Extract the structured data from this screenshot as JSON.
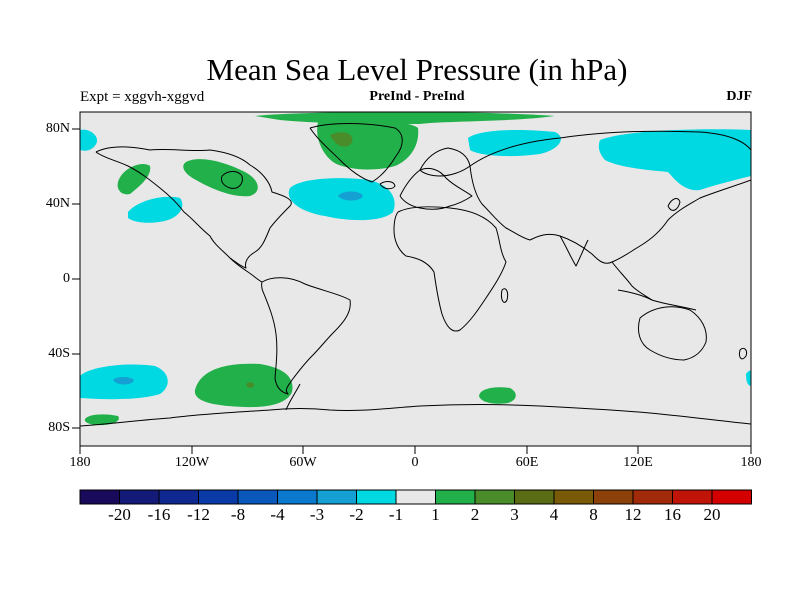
{
  "title": "Mean Sea Level Pressure (in hPa)",
  "experiment_label": "Expt = xggvh-xggvd",
  "comparison_label": "PreInd - PreInd",
  "season": "DJF",
  "lat_labels": [
    "80N",
    "40N",
    "0",
    "40S",
    "80S"
  ],
  "lon_labels": [
    "180",
    "120W",
    "60W",
    "0",
    "60E",
    "120E",
    "180"
  ],
  "colorbar": {
    "colors": [
      "#1a0a5c",
      "#141a78",
      "#0f2890",
      "#0a3aa8",
      "#0a58bc",
      "#0a78cc",
      "#14a0d2",
      "#00d8e2",
      "#e8e8e8",
      "#22b04a",
      "#4a8c2a",
      "#5a6c14",
      "#785a08",
      "#8c400a",
      "#a02a0a",
      "#c01408",
      "#d40000"
    ],
    "labels": [
      "-20",
      "-16",
      "-12",
      "-8",
      "-4",
      "-3",
      "-2",
      "-1",
      "1",
      "2",
      "3",
      "4",
      "8",
      "12",
      "16",
      "20"
    ]
  },
  "colors": {
    "land_neutral": "#e8e8e8",
    "negative_anomaly": "#00d8e2",
    "negative_core": "#14a0d2",
    "positive_anomaly": "#22b04a",
    "positive_core": "#4a8c2a",
    "coast": "#000000"
  }
}
